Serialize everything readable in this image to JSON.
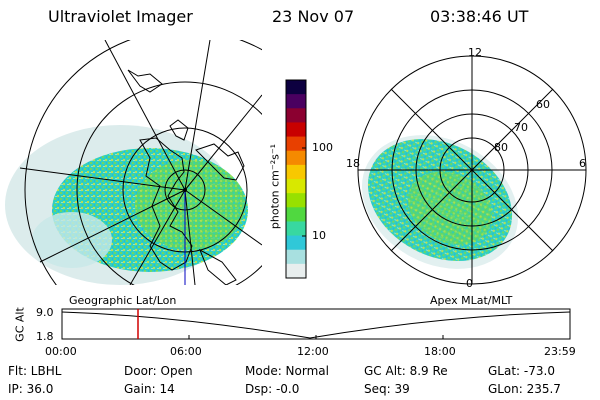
{
  "header": {
    "instrument": "Ultraviolet Imager",
    "date": "23 Nov 07",
    "time": "03:38:46 UT"
  },
  "geo_panel": {
    "caption": "Geographic Lat/Lon"
  },
  "apex_panel": {
    "caption": "Apex MLat/MLT",
    "mlt_labels": [
      "12",
      "18",
      "6",
      "0"
    ],
    "mlat_labels": [
      "60",
      "70",
      "80"
    ]
  },
  "colorbar": {
    "unit": "photon cm⁻²s⁻¹",
    "ticks": [
      "100",
      "10"
    ],
    "colors": [
      "#0d0040",
      "#4a0060",
      "#8b0030",
      "#c80000",
      "#e84000",
      "#f58a00",
      "#f8c800",
      "#d8e800",
      "#98e000",
      "#50d840",
      "#38d8a0",
      "#30c8d8",
      "#a8e0e0",
      "#e8eeee"
    ]
  },
  "altitude_plot": {
    "ylabel": "GC Alt",
    "ymax_label": "9.0",
    "ymin_label": "1.8",
    "x_ticks": [
      "00:00",
      "06:00",
      "12:00",
      "18:00",
      "23:59"
    ],
    "marker_color": "#d00000"
  },
  "status": {
    "flt": "Flt: LBHL",
    "ip": "IP: 36.0",
    "door": "Door: Open",
    "gain": "Gain: 14",
    "mode": "Mode: Normal",
    "dsp": "Dsp:   -0.0",
    "gc_alt": "GC Alt: 8.9 Re",
    "seq": "Seq: 39",
    "glat": "GLat: -73.0",
    "glon": "GLon: 235.7"
  }
}
